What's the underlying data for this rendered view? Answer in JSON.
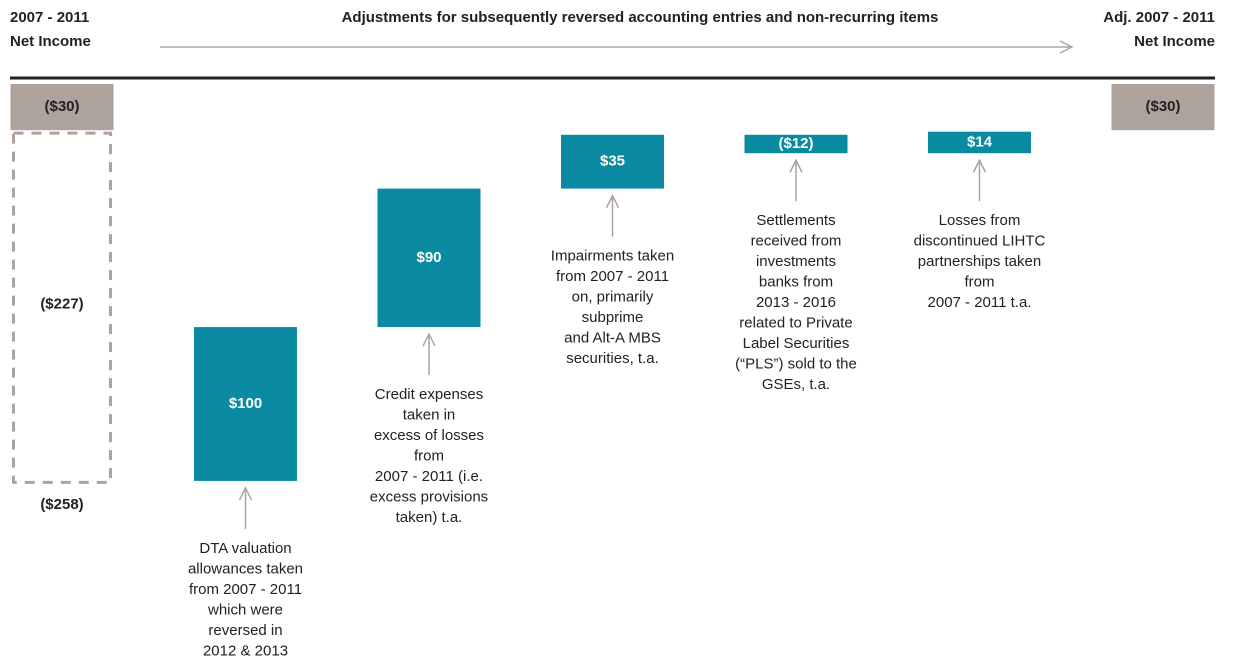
{
  "chart_data": {
    "type": "waterfall",
    "title": "Adjustments for subsequently reversed accounting entries and non-recurring items",
    "start_label": [
      "2007 - 2011",
      "Net Income"
    ],
    "end_label": [
      "Adj. 2007 - 2011",
      "Net Income"
    ],
    "start": {
      "value": -30,
      "label": "($30)"
    },
    "excluded": {
      "value": -227,
      "label": "($227)"
    },
    "floor": {
      "value": -258,
      "label": "($258)"
    },
    "end": {
      "value": -30,
      "label": "($30)"
    },
    "categories": [
      [
        "DTA valuation",
        "allowances taken",
        "from 2007 - 2011",
        "which were",
        "reversed in",
        "2012 & 2013"
      ],
      [
        "Credit expenses",
        "taken in",
        "excess of losses",
        "from",
        "2007 - 2011 (i.e.",
        "excess provisions",
        "taken) t.a."
      ],
      [
        "Impairments taken",
        "from 2007 - 2011",
        "on, primarily",
        "subprime",
        "and Alt-A MBS",
        "securities, t.a."
      ],
      [
        "Settlements",
        "received from",
        "investments",
        "banks from",
        "2013 - 2016",
        "related to Private",
        "Label Securities",
        "(“PLS”) sold to the",
        "GSEs, t.a."
      ],
      [
        "Losses from",
        "discontinued LIHTC",
        "partnerships taken",
        "from",
        "2007 - 2011 t.a."
      ]
    ],
    "values": [
      100,
      90,
      35,
      -12,
      14
    ],
    "value_labels": [
      "$100",
      "$90",
      "$35",
      "($12)",
      "$14"
    ],
    "color": "#0b8ba1",
    "total_color": "#aea39c",
    "ylim": [
      -260,
      0
    ]
  }
}
